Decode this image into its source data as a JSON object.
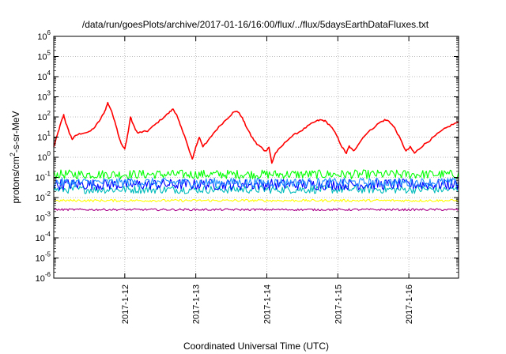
{
  "chart_data": {
    "type": "line",
    "title": "/data/run/goesPlots/archive/2017-01-16/16:00/flux/../flux/5daysEarthDataFluxes.txt",
    "xlabel": "Coordinated Universal Time (UTC)",
    "ylabel_base": "protons/cm",
    "ylabel_sup": "2",
    "ylabel_rest": "-s-sr-MeV",
    "y_scale": "log",
    "ylim": [
      1e-06,
      1000000.0
    ],
    "xlim_days": [
      0,
      5.7
    ],
    "grid": true,
    "legend": "none",
    "x_ticks": [
      {
        "label": "2017-1-12",
        "value": 1
      },
      {
        "label": "2017-1-13",
        "value": 2
      },
      {
        "label": "2017-1-14",
        "value": 3
      },
      {
        "label": "2017-1-15",
        "value": 4
      },
      {
        "label": "2017-1-16",
        "value": 5
      }
    ],
    "y_ticks": [
      {
        "mant": "10",
        "exp": "6",
        "value": 6
      },
      {
        "mant": "10",
        "exp": "5",
        "value": 5
      },
      {
        "mant": "10",
        "exp": "4",
        "value": 4
      },
      {
        "mant": "10",
        "exp": "3",
        "value": 3
      },
      {
        "mant": "10",
        "exp": "2",
        "value": 2
      },
      {
        "mant": "10",
        "exp": "1",
        "value": 1
      },
      {
        "mant": "10",
        "exp": "0",
        "value": 0
      },
      {
        "mant": "10",
        "exp": "-1",
        "value": -1
      },
      {
        "mant": "10",
        "exp": "-2",
        "value": -2
      },
      {
        "mant": "10",
        "exp": "-3",
        "value": -3
      },
      {
        "mant": "10",
        "exp": "-4",
        "value": -4
      },
      {
        "mant": "10",
        "exp": "-5",
        "value": -5
      },
      {
        "mant": "10",
        "exp": "-6",
        "value": -6
      }
    ],
    "series": [
      {
        "color": "#ff0000",
        "noise": 0.08,
        "points": [
          [
            0.0,
            0.5
          ],
          [
            0.05,
            1.1
          ],
          [
            0.1,
            1.7
          ],
          [
            0.14,
            2.1
          ],
          [
            0.17,
            1.7
          ],
          [
            0.22,
            1.2
          ],
          [
            0.26,
            0.9
          ],
          [
            0.32,
            1.1
          ],
          [
            0.4,
            1.2
          ],
          [
            0.5,
            1.25
          ],
          [
            0.58,
            1.5
          ],
          [
            0.66,
            1.9
          ],
          [
            0.72,
            2.3
          ],
          [
            0.76,
            2.7
          ],
          [
            0.8,
            2.4
          ],
          [
            0.86,
            1.8
          ],
          [
            0.92,
            1.0
          ],
          [
            0.96,
            0.6
          ],
          [
            1.0,
            0.4
          ],
          [
            1.05,
            1.3
          ],
          [
            1.08,
            2.0
          ],
          [
            1.12,
            1.6
          ],
          [
            1.18,
            1.2
          ],
          [
            1.24,
            1.25
          ],
          [
            1.32,
            1.3
          ],
          [
            1.42,
            1.6
          ],
          [
            1.52,
            1.9
          ],
          [
            1.62,
            2.2
          ],
          [
            1.68,
            2.4
          ],
          [
            1.73,
            2.1
          ],
          [
            1.78,
            1.6
          ],
          [
            1.84,
            1.1
          ],
          [
            1.9,
            0.4
          ],
          [
            1.95,
            -0.1
          ],
          [
            2.0,
            0.5
          ],
          [
            2.05,
            1.0
          ],
          [
            2.1,
            0.55
          ],
          [
            2.15,
            0.7
          ],
          [
            2.25,
            1.2
          ],
          [
            2.35,
            1.6
          ],
          [
            2.45,
            1.95
          ],
          [
            2.52,
            2.2
          ],
          [
            2.58,
            2.3
          ],
          [
            2.64,
            2.05
          ],
          [
            2.7,
            1.6
          ],
          [
            2.78,
            1.05
          ],
          [
            2.86,
            0.65
          ],
          [
            2.92,
            0.5
          ],
          [
            2.98,
            0.3
          ],
          [
            3.03,
            0.5
          ],
          [
            3.07,
            -0.3
          ],
          [
            3.12,
            0.2
          ],
          [
            3.2,
            0.5
          ],
          [
            3.3,
            0.9
          ],
          [
            3.4,
            1.15
          ],
          [
            3.5,
            1.35
          ],
          [
            3.6,
            1.6
          ],
          [
            3.7,
            1.8
          ],
          [
            3.76,
            1.85
          ],
          [
            3.82,
            1.8
          ],
          [
            3.9,
            1.55
          ],
          [
            3.98,
            1.1
          ],
          [
            4.06,
            0.5
          ],
          [
            4.12,
            0.2
          ],
          [
            4.16,
            0.55
          ],
          [
            4.22,
            0.3
          ],
          [
            4.28,
            0.6
          ],
          [
            4.38,
            1.1
          ],
          [
            4.48,
            1.4
          ],
          [
            4.58,
            1.7
          ],
          [
            4.66,
            1.85
          ],
          [
            4.72,
            1.8
          ],
          [
            4.8,
            1.45
          ],
          [
            4.88,
            0.9
          ],
          [
            4.96,
            0.3
          ],
          [
            5.02,
            0.5
          ],
          [
            5.08,
            0.2
          ],
          [
            5.14,
            0.4
          ],
          [
            5.22,
            0.65
          ],
          [
            5.3,
            0.85
          ],
          [
            5.4,
            1.15
          ],
          [
            5.5,
            1.4
          ],
          [
            5.6,
            1.6
          ],
          [
            5.7,
            1.75
          ]
        ]
      },
      {
        "color": "#00ff00",
        "base": -0.85,
        "noise": 0.45
      },
      {
        "color": "#00bbbb",
        "base": -1.6,
        "noise": 0.4
      },
      {
        "color": "#0000ff",
        "base": -1.35,
        "noise": 0.55
      },
      {
        "color": "#1e90ff",
        "base": -1.25,
        "noise": 0.45
      },
      {
        "color": "#ffff00",
        "base": -2.15,
        "noise": 0.12
      },
      {
        "color": "#aa0088",
        "base": -2.6,
        "noise": 0.1
      }
    ]
  }
}
